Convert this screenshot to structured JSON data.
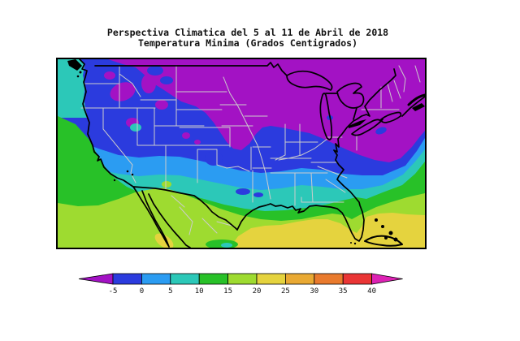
{
  "title": {
    "line1": "Perspectiva Climatica del 5 al 11 de Abril de 2018",
    "line2": "Temperatura Minima (Grados Centigrados)"
  },
  "map": {
    "bands": [
      {
        "range_c": "menor a -5",
        "color": "#A312C4"
      },
      {
        "range_c": "-5 a 0",
        "color": "#2B3BDE"
      },
      {
        "range_c": "0 a 5",
        "color": "#2B9CF2"
      },
      {
        "range_c": "5 a 10",
        "color": "#2CC8B8"
      },
      {
        "range_c": "10 a 15",
        "color": "#28C128"
      },
      {
        "range_c": "15 a 20",
        "color": "#9EDB30"
      },
      {
        "range_c": "20 a 25",
        "color": "#E5D33E"
      }
    ],
    "coastline_color": "#000000",
    "state_line_color": "#CCCCCC"
  },
  "colorbar": {
    "tick_labels": [
      "-5",
      "0",
      "5",
      "10",
      "15",
      "20",
      "25",
      "30",
      "35",
      "40"
    ],
    "segment_colors": [
      "#2B3BDE",
      "#2B9CF2",
      "#2CC8B8",
      "#28C128",
      "#9EDB30",
      "#E5D33E",
      "#E9A933",
      "#E97A2D",
      "#EA3535"
    ],
    "arrow_left_color": "#A312C4",
    "arrow_right_color": "#DD22B4"
  }
}
